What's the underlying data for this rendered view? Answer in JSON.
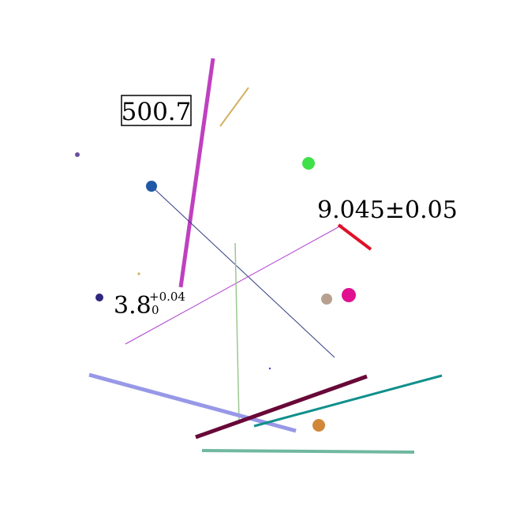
{
  "labels": {
    "boxed_value": "500.7",
    "plus_minus": "9.045±0.05",
    "base_value": "3.8",
    "sup_value": "+0.04",
    "sub_value": "0"
  },
  "colors": {
    "magenta_line": "#c040c0",
    "tan_line": "#d4b060",
    "blue_line": "#303c80",
    "purple_line": "#b040d0",
    "green_line": "#9cc890",
    "red_line": "#e01028",
    "lavender_line": "#9898e8",
    "maroon_line": "#680838",
    "teal_line": "#10908c",
    "sage_line": "#70b8a0",
    "blue_dot": "#2058a8",
    "green_dot": "#40e048",
    "pink_dot": "#e01090",
    "taupe_dot": "#b8a090",
    "navy_dot": "#302880",
    "orange_dot": "#d08838",
    "violet_dot": "#6850a0",
    "tiny_dot": "#4040c0",
    "cross": "#c0a040"
  }
}
